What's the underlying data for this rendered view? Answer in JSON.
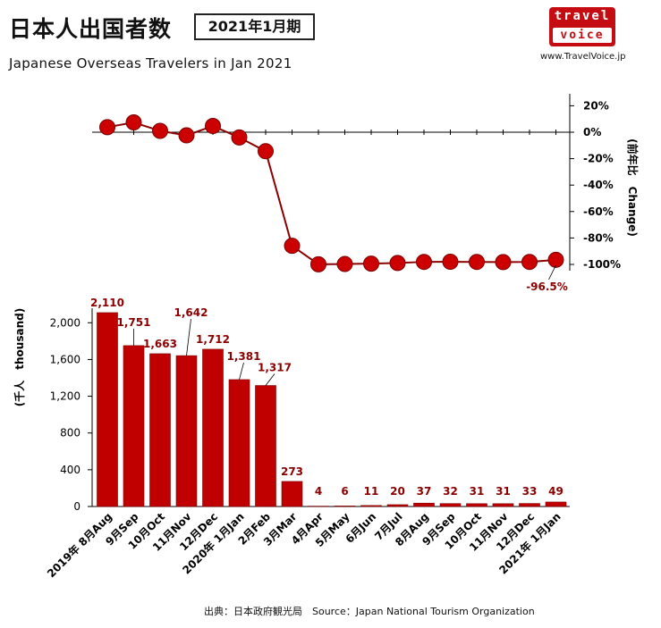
{
  "header": {
    "title_jp": "日本人出国者数",
    "period": "2021年1月期",
    "subtitle": "Japanese Overseas Travelers in Jan 2021"
  },
  "logo": {
    "line1": "travel",
    "line2": "voice",
    "site": "www.TravelVoice.jp"
  },
  "source": "出典：日本政府観光局　Source：Japan  National Tourism   Organization",
  "colors": {
    "bar": "#c00000",
    "line": "#8b0000",
    "marker": "#cc0000",
    "label": "#8b0000"
  },
  "chart_data": [
    {
      "type": "line",
      "x": [
        "2019年 8月Aug",
        "9月Sep",
        "10月Oct",
        "11月Nov",
        "12月Dec",
        "2020年 1月Jan",
        "2月Feb",
        "3月Mar",
        "4月Apr",
        "5月May",
        "6月Jun",
        "7月Jul",
        "8月Aug",
        "9月Sep",
        "10月Oct",
        "11月Nov",
        "12月Dec",
        "2021年 1月Jan"
      ],
      "values": [
        3.8,
        7.4,
        1.0,
        -2.4,
        4.7,
        -4.0,
        -14.4,
        -85.9,
        -99.9,
        -99.7,
        -99.4,
        -98.9,
        -98.1,
        -98.0,
        -98.1,
        -98.2,
        -98.1,
        -96.5
      ],
      "ylabel": "(前年比　Change)",
      "ylim": [
        -110,
        30
      ],
      "yticks": [
        "20%",
        "0%",
        "-20%",
        "-40%",
        "-60%",
        "-80%",
        "-100%"
      ],
      "annotation": "-96.5%"
    },
    {
      "type": "bar",
      "categories": [
        "2019年 8月Aug",
        "9月Sep",
        "10月Oct",
        "11月Nov",
        "12月Dec",
        "2020年 1月Jan",
        "2月Feb",
        "3月Mar",
        "4月Apr",
        "5月May",
        "6月Jun",
        "7月Jul",
        "8月Aug",
        "9月Sep",
        "10月Oct",
        "11月Nov",
        "12月Dec",
        "2021年 1月Jan"
      ],
      "values": [
        2110,
        1751,
        1663,
        1642,
        1712,
        1381,
        1317,
        273,
        4,
        6,
        11,
        20,
        37,
        32,
        31,
        31,
        33,
        49
      ],
      "labels": [
        "2,110",
        "1,751",
        "1,663",
        "1,642",
        "1,712",
        "1,381",
        "1,317",
        "273",
        "4",
        "6",
        "11",
        "20",
        "37",
        "32",
        "31",
        "31",
        "33",
        "49"
      ],
      "ylabel": "(千人　thousand)",
      "ylim": [
        0,
        2200
      ],
      "yticks": [
        "2,000",
        "1,600",
        "1,200",
        "800",
        "400",
        "0"
      ]
    }
  ]
}
